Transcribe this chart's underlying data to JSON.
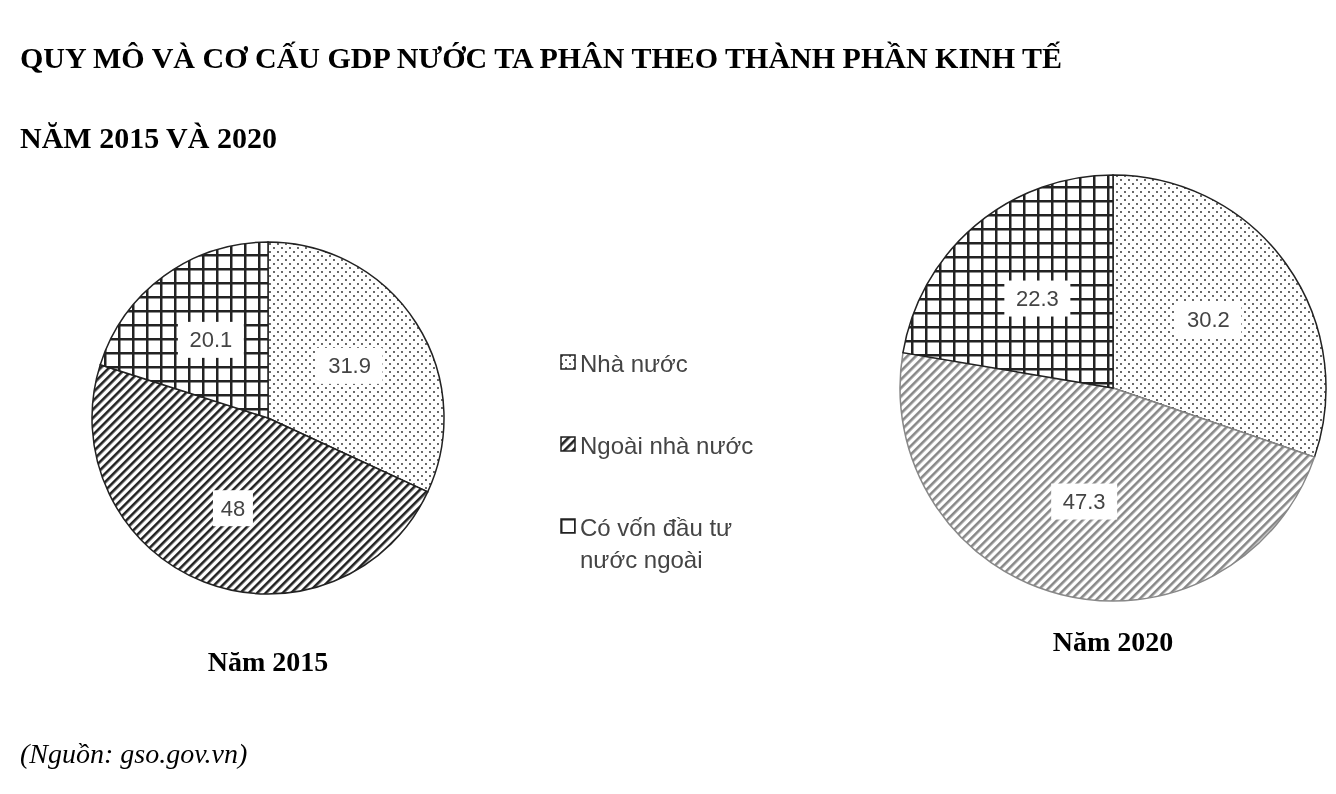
{
  "chart_data": [
    {
      "type": "pie",
      "title": "QUY MÔ VÀ CƠ CẤU GDP NƯỚC TA PHÂN THEO THÀNH PHẦN KINH TẾ NĂM 2015 VÀ 2020",
      "xlabel": "Năm 2015",
      "categories": [
        "Nhà nước",
        "Ngoài nhà nước",
        "Có vốn đầu tư nước ngoài"
      ],
      "values": [
        31.9,
        48,
        20.1
      ],
      "colors": [
        "#222222",
        "#222222",
        "#222222"
      ],
      "data_labels": true,
      "legend": "right",
      "annotations": [
        "(Nguồn: gso.gov.vn)"
      ]
    },
    {
      "type": "pie",
      "xlabel": "Năm 2020",
      "categories": [
        null,
        null,
        null
      ],
      "values": [
        30.2,
        47.3,
        22.3
      ],
      "colors": [
        "#222222",
        "#888888",
        "#222222"
      ],
      "data_labels": true
    }
  ]
}
